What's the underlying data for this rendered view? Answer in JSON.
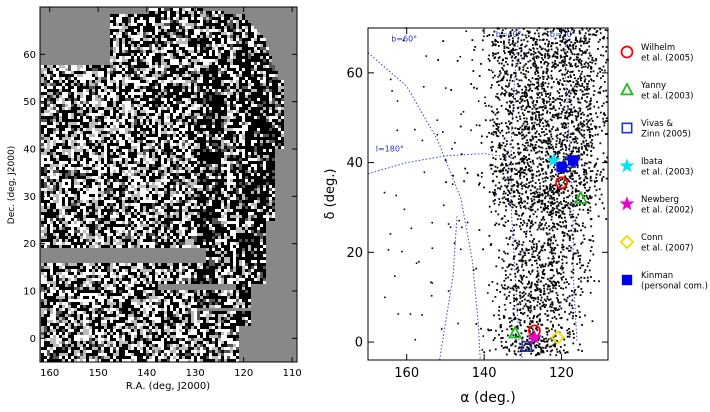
{
  "chart_data": [
    {
      "type": "heatmap",
      "title": "",
      "xlabel": "R.A. (deg, J2000)",
      "ylabel": "Dec. (deg, J2000)",
      "xlim": [
        162,
        109
      ],
      "ylim": [
        -5,
        70
      ],
      "x_ticks": [
        160,
        150,
        140,
        130,
        120,
        110
      ],
      "y_ticks": [
        0,
        10,
        20,
        30,
        40,
        50,
        60
      ],
      "colormap": [
        "#000000",
        "#ffffff"
      ],
      "background": "#888888",
      "grid": false
    },
    {
      "type": "scatter",
      "title": "",
      "xlabel": "α (deg.)",
      "ylabel": "δ (deg.)",
      "xlim": [
        170,
        108
      ],
      "ylim": [
        -4,
        70
      ],
      "x_ticks": [
        160,
        140,
        120
      ],
      "y_ticks": [
        0,
        20,
        40,
        60
      ],
      "grid": false,
      "legend_position": "right",
      "grid_lines": [
        {
          "label": "b=60°",
          "points": [
            [
              170,
              64.5
            ],
            [
              160,
              57
            ],
            [
              152,
              45
            ],
            [
              146,
              32
            ],
            [
              143,
              18
            ],
            [
              141.5,
              4
            ],
            [
              141,
              -4
            ]
          ]
        },
        {
          "label": "l=180°",
          "points": [
            [
              170,
              37.5
            ],
            [
              160,
              40
            ],
            [
              150,
              41.5
            ],
            [
              140,
              42
            ],
            [
              132,
              41
            ]
          ]
        },
        {
          "label": "b=40°",
          "points": [
            [
              131,
              70
            ],
            [
              132,
              60
            ],
            [
              133,
              45
            ],
            [
              133,
              30
            ],
            [
              132,
              15
            ],
            [
              131,
              0
            ],
            [
              130,
              -4
            ]
          ]
        },
        {
          "label": "b=20°",
          "points": [
            [
              119,
              70
            ],
            [
              119,
              60
            ],
            [
              118,
              45
            ],
            [
              117,
              30
            ],
            [
              117,
              15
            ],
            [
              116,
              0
            ]
          ]
        },
        {
          "label": "",
          "points": [
            [
              151.5,
              -4
            ],
            [
              148,
              15
            ],
            [
              147,
              28
            ]
          ]
        }
      ],
      "series": [
        {
          "name": "Wilhelm et al. (2005)",
          "marker": "circle-open",
          "color": "#ff0000",
          "points": [
            [
              120,
              35.5
            ],
            [
              127,
              2.5
            ]
          ]
        },
        {
          "name": "Yanny et al. (2003)",
          "marker": "triangle-open",
          "color": "#22bb22",
          "points": [
            [
              115,
              32
            ],
            [
              132,
              2
            ]
          ]
        },
        {
          "name": "Vivas & Zinn (2005)",
          "marker": "square-open",
          "color": "#2233bb",
          "points": [
            [
              129,
              -1
            ],
            [
              118,
              40
            ]
          ]
        },
        {
          "name": "Ibata et al. (2003)",
          "marker": "star",
          "color": "#00e5ee",
          "points": [
            [
              122,
              40.5
            ]
          ]
        },
        {
          "name": "Newberg et al. (2002)",
          "marker": "star",
          "color": "#ee00cc",
          "points": [
            [
              127,
              1
            ]
          ]
        },
        {
          "name": "Conn et al. (2007)",
          "marker": "diamond-open",
          "color": "#eedd00",
          "points": [
            [
              121,
              1
            ]
          ]
        },
        {
          "name": "Kinman (personal com.)",
          "marker": "square-filled",
          "color": "#0000ee",
          "points": [
            [
              120,
              39
            ],
            [
              117,
              40.5
            ]
          ]
        }
      ]
    }
  ]
}
